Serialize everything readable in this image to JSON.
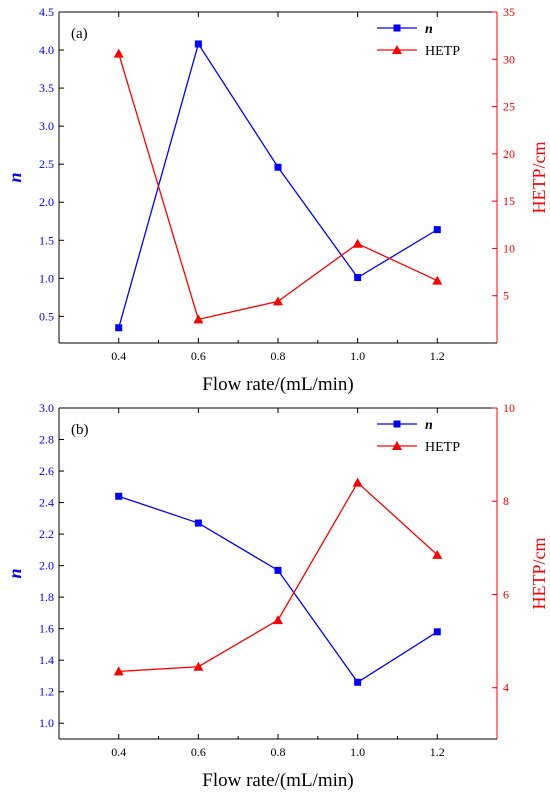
{
  "colors": {
    "n": "#0000ff",
    "hetp": "#ff0000",
    "axis": "#000000"
  },
  "chart_data": [
    {
      "type": "line",
      "panel_label": "(a)",
      "xlabel": "Flow rate/(mL/min)",
      "ylabel_left": "n",
      "ylabel_right": "HETP/cm",
      "x": [
        0.4,
        0.6,
        0.8,
        1.0,
        1.2
      ],
      "x_tick_labels": [
        "0.4",
        "0.6",
        "0.8",
        "1.0",
        "1.2"
      ],
      "xlim": [
        0.25,
        1.35
      ],
      "ylim_left": [
        0.15,
        4.5
      ],
      "ylim_right": [
        0,
        35
      ],
      "y_left_ticks": [
        "0.5",
        "1.0",
        "1.5",
        "2.0",
        "2.5",
        "3.0",
        "3.5",
        "4.0",
        "4.5"
      ],
      "y_right_ticks": [
        "5",
        "10",
        "15",
        "20",
        "25",
        "30",
        "35"
      ],
      "legend_position": "top-right",
      "series": [
        {
          "name": "n",
          "axis": "left",
          "marker": "square",
          "color": "#0000ff",
          "values": [
            0.35,
            4.08,
            2.46,
            1.01,
            1.64
          ]
        },
        {
          "name": "HETP",
          "axis": "right",
          "marker": "triangle",
          "color": "#ff0000",
          "values": [
            30.6,
            2.5,
            4.4,
            10.5,
            6.6
          ]
        }
      ]
    },
    {
      "type": "line",
      "panel_label": "(b)",
      "xlabel": "Flow rate/(mL/min)",
      "ylabel_left": "n",
      "ylabel_right": "HETP/cm",
      "x": [
        0.4,
        0.6,
        0.8,
        1.0,
        1.2
      ],
      "x_tick_labels": [
        "0.4",
        "0.6",
        "0.8",
        "1.0",
        "1.2"
      ],
      "xlim": [
        0.25,
        1.35
      ],
      "ylim_left": [
        0.9,
        3.0
      ],
      "ylim_right": [
        2.9,
        10
      ],
      "y_left_ticks": [
        "1.0",
        "1.2",
        "1.4",
        "1.6",
        "1.8",
        "2.0",
        "2.2",
        "2.4",
        "2.6",
        "2.8",
        "3.0"
      ],
      "y_right_ticks": [
        "4",
        "6",
        "8",
        "10"
      ],
      "legend_position": "top-right",
      "series": [
        {
          "name": "n",
          "axis": "left",
          "marker": "square",
          "color": "#0000ff",
          "values": [
            2.44,
            2.27,
            1.97,
            1.26,
            1.58
          ]
        },
        {
          "name": "HETP",
          "axis": "right",
          "marker": "triangle",
          "color": "#ff0000",
          "values": [
            4.35,
            4.45,
            5.45,
            8.4,
            6.85
          ]
        }
      ]
    }
  ]
}
